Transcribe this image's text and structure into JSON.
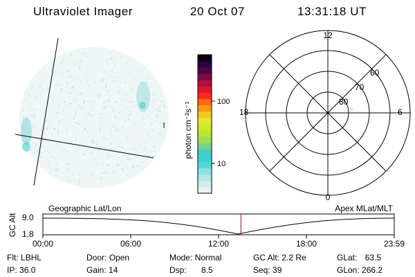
{
  "header": {
    "title": "Ultraviolet Imager",
    "date": "20 Oct 07",
    "time": "13:31:18 UT"
  },
  "colorbar": {
    "label": "photon cm⁻²s⁻¹",
    "ticks": [
      "100",
      "10"
    ],
    "colors": [
      "#e8f4f4",
      "#cdeceb",
      "#b0e6e6",
      "#8be0e0",
      "#55d8d8",
      "#3cd1d6",
      "#49ccc4",
      "#7ad38c",
      "#9fdd55",
      "#b8e62f",
      "#d0e829",
      "#e7e72a",
      "#f5c824",
      "#ff9a12",
      "#ff6a12",
      "#ff2a1e",
      "#e0142c",
      "#b01040",
      "#800a40",
      "#50054a",
      "#2a0040",
      "#080010"
    ]
  },
  "polar": {
    "mlt_labels": [
      "12",
      "18",
      "6",
      "0"
    ],
    "lat_labels": [
      "60",
      "70",
      "80"
    ],
    "mlt_label_names": [
      "mlt-label-12",
      "mlt-label-18",
      "mlt-label-6",
      "mlt-label-0"
    ],
    "lat_label_names": [
      "lat-label-60",
      "lat-label-70",
      "lat-label-80"
    ]
  },
  "timeline": {
    "ylabel": "GC Alt",
    "ymax": "9.0",
    "ymin": "1.8",
    "left_caption": "Geographic Lat/Lon",
    "right_caption": "Apex MLat/MLT",
    "ticks": [
      "00:00",
      "06:00",
      "12:00",
      "18:00",
      "23:59"
    ],
    "marker_fraction": 0.5635
  },
  "info": {
    "flt_label": "Flt:",
    "flt_value": "LBHL",
    "ip_label": "IP:",
    "ip_value": "36.0",
    "door_label": "Door:",
    "door_value": "Open",
    "gain_label": "Gain:",
    "gain_value": "14",
    "mode_label": "Mode:",
    "mode_value": "Normal",
    "dsp_label": "Dsp:",
    "dsp_value": "8.5",
    "gcalt_label": "GC Alt:",
    "gcalt_value": "2.2 Re",
    "seq_label": "Seq:",
    "seq_value": "39",
    "glat_label": "GLat:",
    "glat_value": "63.5",
    "glon_label": "GLon:",
    "glon_value": "266.2"
  }
}
